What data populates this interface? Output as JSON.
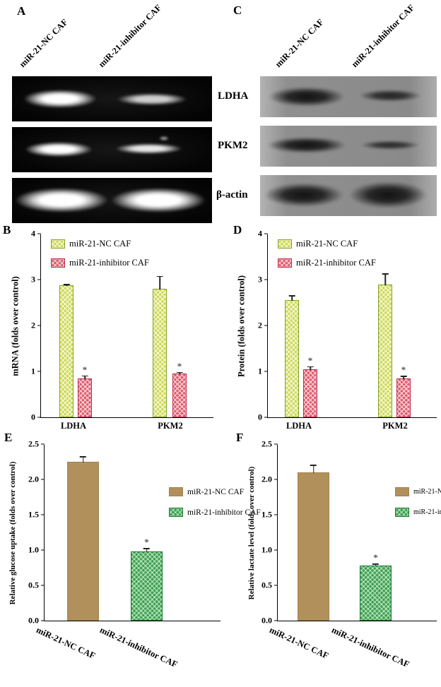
{
  "blots": {
    "A": {
      "label": "A",
      "lanes": [
        "miR-21-NC CAF",
        "miR-21-inhibitor CAF"
      ]
    },
    "C": {
      "label": "C",
      "lanes": [
        "miR-21-NC CAF",
        "miR-21-inhibitor CAF"
      ],
      "rows": [
        "LDHA",
        "PKM2",
        "β-actin"
      ]
    }
  },
  "chart_data": [
    {
      "panel": "B",
      "type": "bar",
      "ylabel": "mRNA (folds over control)",
      "ylim": [
        0,
        4
      ],
      "yticks": [
        "0",
        "1",
        "2",
        "3",
        "4"
      ],
      "categories": [
        "LDHA",
        "PKM2"
      ],
      "legend_position": "top-left inside",
      "series": [
        {
          "name": "miR-21-NC CAF",
          "values": [
            2.88,
            2.8
          ],
          "errors": [
            0.04,
            0.3
          ]
        },
        {
          "name": "miR-21-inhibitor CAF",
          "values": [
            0.85,
            0.95
          ],
          "errors": [
            0.08,
            0.05
          ],
          "sig": [
            "*",
            "*"
          ]
        }
      ]
    },
    {
      "panel": "D",
      "type": "bar",
      "ylabel": "Protein (folds over control)",
      "ylim": [
        0,
        4
      ],
      "yticks": [
        "0",
        "1",
        "2",
        "3",
        "4"
      ],
      "categories": [
        "LDHA",
        "PKM2"
      ],
      "legend_position": "top-left inside",
      "series": [
        {
          "name": "miR-21-NC CAF",
          "values": [
            2.55,
            2.9
          ],
          "errors": [
            0.12,
            0.25
          ]
        },
        {
          "name": "miR-21-inhibitor CAF",
          "values": [
            1.05,
            0.85
          ],
          "errors": [
            0.08,
            0.07
          ],
          "sig": [
            "*",
            "*"
          ]
        }
      ]
    },
    {
      "panel": "E",
      "type": "bar",
      "ylabel": "Relative glucose uptake (folds over control)",
      "ylim": [
        0,
        2.5
      ],
      "yticks": [
        "0.0",
        "0.5",
        "1.0",
        "1.5",
        "2.0",
        "2.5"
      ],
      "legend_position": "right inside",
      "bars": [
        {
          "label": "miR-21-NC CAF",
          "value": 2.25,
          "error": 0.09
        },
        {
          "label": "miR-21-inhibitor CAF",
          "value": 0.98,
          "error": 0.06,
          "sig": "*"
        }
      ]
    },
    {
      "panel": "F",
      "type": "bar",
      "ylabel": "Relative lactate level (folds over control)",
      "ylim": [
        0,
        2.5
      ],
      "yticks": [
        "0.0",
        "0.5",
        "1.0",
        "1.5",
        "2.0",
        "2.5"
      ],
      "legend_position": "right inside",
      "bars": [
        {
          "label": "miR-21-NC CAF",
          "value": 2.1,
          "error": 0.12
        },
        {
          "label": "miR-21-inhibitor CAF",
          "value": 0.78,
          "error": 0.04,
          "sig": "*"
        }
      ]
    }
  ],
  "colors": {
    "nc_checker": "#cdd94f",
    "inhibitor_checker": "#e0596b",
    "nc_tan": "#b1905c",
    "inhibitor_green": "#3d9d50",
    "axis": "#000000",
    "gel_background": "#050505",
    "blot_background": "#9a9a9a"
  }
}
